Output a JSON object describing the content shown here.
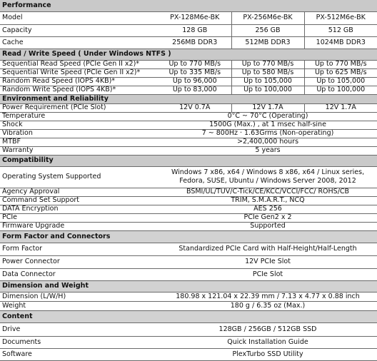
{
  "sections": {
    "performance": {
      "title": "Performance",
      "rows": {
        "model": {
          "label": "Model",
          "values": [
            "PX-128M6e-BK",
            "PX-256M6e-BK",
            "PX-512M6e-BK"
          ]
        },
        "capacity": {
          "label": "Capacity",
          "values": [
            "128 GB",
            "256 GB",
            "512 GB"
          ]
        },
        "cache": {
          "label": "Cache",
          "values": [
            "256MB DDR3",
            "512MB DDR3",
            "1024MB DDR3"
          ]
        }
      }
    },
    "speed": {
      "title": "Read / Write Speed ( Under Windows NTFS )",
      "rows": {
        "seq_read": {
          "label": "Sequential Read Speed (PCIe Gen II x2)*",
          "values": [
            "Up to 770 MB/s",
            "Up to 770 MB/s",
            "Up to 770 MB/s"
          ]
        },
        "seq_write": {
          "label": "Sequential Write Speed (PCIe Gen II x2)*",
          "values": [
            "Up to 335 MB/s",
            "Up to 580 MB/s",
            "Up to 625 MB/s"
          ]
        },
        "rand_read": {
          "label": "Random Read Speed (IOPS 4KB)*",
          "values": [
            "Up to 96,000",
            "Up to 105,000",
            "Up to 105,000"
          ]
        },
        "rand_write": {
          "label": "Random Write Speed (IOPS 4KB)*",
          "values": [
            "Up to 83,000",
            "Up to 100,000",
            "Up to 100,000"
          ]
        }
      }
    },
    "environment": {
      "title": "Environment and Reliability",
      "rows": {
        "power": {
          "label": "Power Requirement (PCIe Slot)",
          "values": [
            "12V 0.7A",
            "12V 1.7A",
            "12V 1.7A"
          ]
        },
        "temperature": {
          "label": "Temperature",
          "value": "0°C ~ 70°C (Operating)"
        },
        "shock": {
          "label": "Shock",
          "value": "1500G (Max.) , at 1 msec half-sine"
        },
        "vibration": {
          "label": "Vibration",
          "value": "7 ~ 800Hz · 1.63Grms (Non-operating)"
        },
        "mtbf": {
          "label": "MTBF",
          "value": ">2,400,000 hours"
        },
        "warranty": {
          "label": "Warranty",
          "value": "5 years"
        }
      }
    },
    "compatibility": {
      "title": "Compatibility",
      "rows": {
        "os": {
          "label": "Operating System Supported",
          "value": "Windows 7 x86, x64 / Windows 8 x86, x64 / Linux series, Fedora, SUSE, Ubuntu / Windows Server 2008, 2012"
        },
        "agency": {
          "label": "Agency Approval",
          "value": "BSMI/UL/TUV/C-Tick/CE/KCC/VCCI/FCC/ ROHS/CB"
        },
        "command": {
          "label": "Command Set Support",
          "value": "TRIM, S.M.A.R.T., NCQ"
        },
        "encryption": {
          "label": "DATA Encryption",
          "value": "AES 256"
        },
        "pcie": {
          "label": "PCIe",
          "value": "PCIe Gen2 x 2"
        },
        "firmware": {
          "label": "Firmware Upgrade",
          "value": "Supported"
        }
      }
    },
    "form_factor": {
      "title": "Form Factor and Connectors",
      "rows": {
        "form": {
          "label": "Form Factor",
          "value": "Standardized PCIe Card with Half-Height/Half-Length"
        },
        "power_conn": {
          "label": "Power Connector",
          "value": "12V PCIe Slot"
        },
        "data_conn": {
          "label": "Data Connector",
          "value": "PCIe Slot"
        }
      }
    },
    "dimension": {
      "title": "Dimension and Weight",
      "rows": {
        "dimension": {
          "label": "Dimension (L/W/H)",
          "value": "180.98 x 121.04 x 22.39 mm / 7.13 x 4.77 x 0.88 inch"
        },
        "weight": {
          "label": "Weight",
          "value": "180 g / 6.35 oz (Max.)"
        }
      }
    },
    "content": {
      "title": "Content",
      "rows": {
        "drive": {
          "label": "Drive",
          "value": "128GB / 256GB / 512GB SSD"
        },
        "documents": {
          "label": "Documents",
          "value": "Quick Installation Guide"
        },
        "software": {
          "label": "Software",
          "value": "PlexTurbo SSD Utility"
        }
      }
    }
  }
}
